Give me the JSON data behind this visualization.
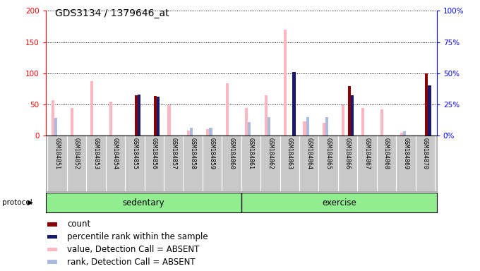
{
  "title": "GDS3134 / 1379646_at",
  "samples": [
    "GSM184851",
    "GSM184852",
    "GSM184853",
    "GSM184854",
    "GSM184855",
    "GSM184856",
    "GSM184857",
    "GSM184858",
    "GSM184859",
    "GSM184860",
    "GSM184861",
    "GSM184862",
    "GSM184863",
    "GSM184864",
    "GSM184865",
    "GSM184866",
    "GSM184867",
    "GSM184868",
    "GSM184869",
    "GSM184870"
  ],
  "count": [
    0,
    0,
    0,
    0,
    65,
    63,
    0,
    0,
    0,
    0,
    0,
    0,
    0,
    0,
    0,
    79,
    0,
    0,
    0,
    100
  ],
  "percentile_rank": [
    0,
    0,
    0,
    0,
    66,
    62,
    0,
    0,
    0,
    0,
    0,
    0,
    102,
    0,
    0,
    65,
    0,
    0,
    0,
    80
  ],
  "value_absent": [
    57,
    44,
    87,
    54,
    0,
    0,
    49,
    8,
    10,
    84,
    44,
    65,
    170,
    23,
    20,
    49,
    44,
    42,
    5,
    0
  ],
  "rank_absent": [
    28,
    0,
    0,
    0,
    0,
    0,
    0,
    12,
    12,
    0,
    22,
    30,
    0,
    30,
    30,
    0,
    0,
    0,
    7,
    0
  ],
  "sedentary_count": 10,
  "ylim_left": [
    0,
    200
  ],
  "yticks_left": [
    0,
    50,
    100,
    150,
    200
  ],
  "yticks_right": [
    0,
    25,
    50,
    75,
    100
  ],
  "yticklabels_right": [
    "0%",
    "25%",
    "50%",
    "75%",
    "100%"
  ],
  "bar_width": 0.15,
  "color_count": "#8B0000",
  "color_percentile": "#191970",
  "color_value_absent": "#FFB6C1",
  "color_rank_absent": "#AABBDD",
  "bg_protocol": "#90EE90",
  "title_fontsize": 10,
  "tick_fontsize": 7.5,
  "legend_fontsize": 8.5
}
